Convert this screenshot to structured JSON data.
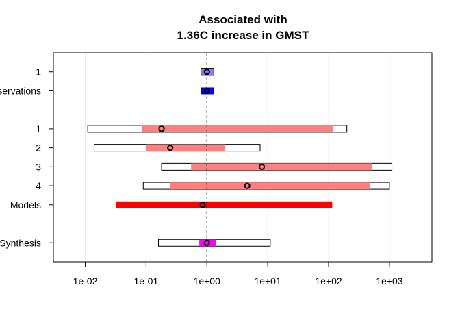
{
  "chart_data": {
    "type": "forest",
    "title": [
      "Associated with",
      "1.36C increase in GMST"
    ],
    "x_scale": "log10",
    "xlim": [
      0.003,
      5000
    ],
    "x_ticks": [
      0.01,
      0.1,
      1,
      10,
      100,
      1000
    ],
    "x_tick_labels": [
      "1e-02",
      "1e-01",
      "1e+00",
      "1e+01",
      "1e+02",
      "1e+03"
    ],
    "reference_line": 1,
    "grid": "vertical-light",
    "rows": [
      {
        "label": "1",
        "y": 10.0,
        "outer": [
          0.8,
          1.3
        ],
        "inner": [
          0.8,
          1.3
        ],
        "point": 1.0,
        "color": "#8080ff",
        "inner_style": "box"
      },
      {
        "label": "Observations",
        "y": 9.0,
        "outer": null,
        "inner": [
          0.8,
          1.3
        ],
        "point": 1.0,
        "color": "#0000ff",
        "inner_style": "bar"
      },
      {
        "label": "1",
        "y": 7.0,
        "outer": [
          0.011,
          200
        ],
        "inner": [
          0.085,
          120
        ],
        "point": 0.18,
        "color": "#ff8080",
        "inner_style": "bar"
      },
      {
        "label": "2",
        "y": 6.0,
        "outer": [
          0.014,
          7.5
        ],
        "inner": [
          0.1,
          2.0
        ],
        "point": 0.25,
        "color": "#ff8080",
        "inner_style": "bar"
      },
      {
        "label": "3",
        "y": 5.0,
        "outer": [
          0.18,
          1100
        ],
        "inner": [
          0.55,
          520
        ],
        "point": 8.0,
        "color": "#ff8080",
        "inner_style": "bar"
      },
      {
        "label": "4",
        "y": 4.0,
        "outer": [
          0.09,
          1000
        ],
        "inner": [
          0.25,
          480
        ],
        "point": 4.6,
        "color": "#ff8080",
        "inner_style": "bar"
      },
      {
        "label": "Models",
        "y": 3.0,
        "outer": null,
        "inner": [
          0.032,
          115
        ],
        "point": 0.85,
        "color": "#ff0000",
        "inner_style": "bar"
      },
      {
        "label": "Synthesis",
        "y": 1.0,
        "outer": [
          0.16,
          11
        ],
        "inner": [
          0.75,
          1.4
        ],
        "point": 1.0,
        "color": "#ff00ff",
        "inner_style": "bar"
      }
    ]
  }
}
